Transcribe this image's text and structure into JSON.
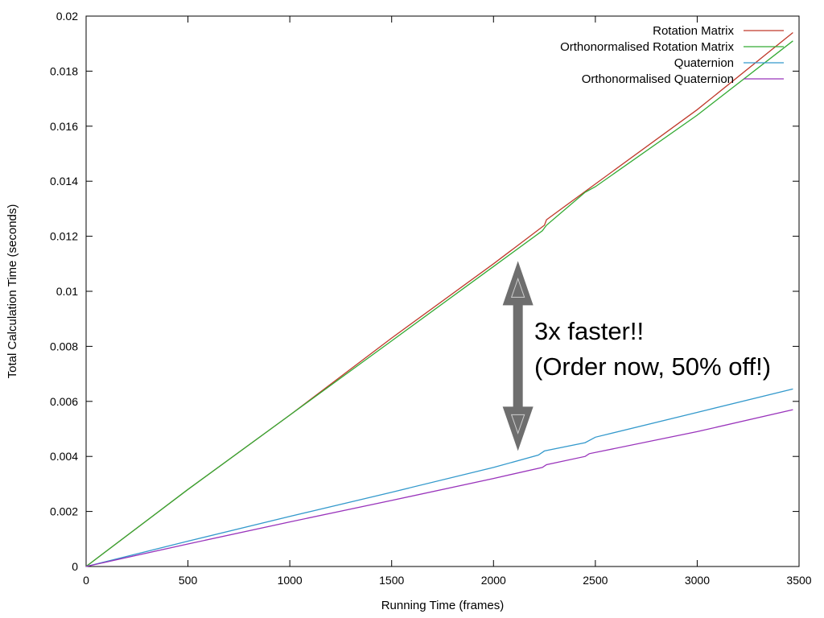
{
  "chart_data": {
    "type": "line",
    "title": "",
    "xlabel": "Running Time (frames)",
    "ylabel": "Total Calculation Time (seconds)",
    "xlim": [
      0,
      3500
    ],
    "ylim": [
      0,
      0.02
    ],
    "x_ticks": [
      "0",
      "500",
      "1000",
      "1500",
      "2000",
      "2500",
      "3000",
      "3500"
    ],
    "y_ticks": [
      "0",
      "0.002",
      "0.004",
      "0.006",
      "0.008",
      "0.01",
      "0.012",
      "0.014",
      "0.016",
      "0.018",
      "0.02"
    ],
    "grid": false,
    "legend_position": "top-right",
    "series": [
      {
        "name": "Rotation Matrix",
        "color": "#c0392b",
        "points": [
          [
            0,
            0
          ],
          [
            500,
            0.0028
          ],
          [
            1000,
            0.0055
          ],
          [
            1500,
            0.0083
          ],
          [
            2000,
            0.011
          ],
          [
            2250,
            0.0124
          ],
          [
            2260,
            0.0126
          ],
          [
            2500,
            0.0139
          ],
          [
            3000,
            0.0166
          ],
          [
            3470,
            0.0194
          ]
        ]
      },
      {
        "name": "Orthonormalised Rotation Matrix",
        "color": "#33aa33",
        "points": [
          [
            0,
            0
          ],
          [
            500,
            0.0028
          ],
          [
            1000,
            0.0055
          ],
          [
            1500,
            0.0082
          ],
          [
            2000,
            0.0109
          ],
          [
            2240,
            0.0122
          ],
          [
            2260,
            0.0124
          ],
          [
            2450,
            0.0136
          ],
          [
            2500,
            0.0138
          ],
          [
            3000,
            0.0164
          ],
          [
            3470,
            0.0191
          ]
        ]
      },
      {
        "name": "Quaternion",
        "color": "#3399cc",
        "points": [
          [
            0,
            0
          ],
          [
            500,
            0.00092
          ],
          [
            1000,
            0.00182
          ],
          [
            1500,
            0.0027
          ],
          [
            2000,
            0.0036
          ],
          [
            2220,
            0.00405
          ],
          [
            2250,
            0.0042
          ],
          [
            2450,
            0.0045
          ],
          [
            2500,
            0.0047
          ],
          [
            3000,
            0.0056
          ],
          [
            3470,
            0.00645
          ]
        ]
      },
      {
        "name": "Orthonormalised Quaternion",
        "color": "#9933bb",
        "points": [
          [
            0,
            0
          ],
          [
            500,
            0.00082
          ],
          [
            1000,
            0.00162
          ],
          [
            1500,
            0.0024
          ],
          [
            2000,
            0.0032
          ],
          [
            2240,
            0.0036
          ],
          [
            2260,
            0.0037
          ],
          [
            2450,
            0.004
          ],
          [
            2470,
            0.0041
          ],
          [
            3000,
            0.0049
          ],
          [
            3470,
            0.0057
          ]
        ]
      }
    ],
    "annotation": {
      "line1": "3x faster!!",
      "line2": "(Order now, 50% off!)",
      "arrow_color": "#6e6e6e",
      "arrow_x": 2120,
      "arrow_y_top": 0.0111,
      "arrow_y_bottom": 0.0042
    }
  }
}
